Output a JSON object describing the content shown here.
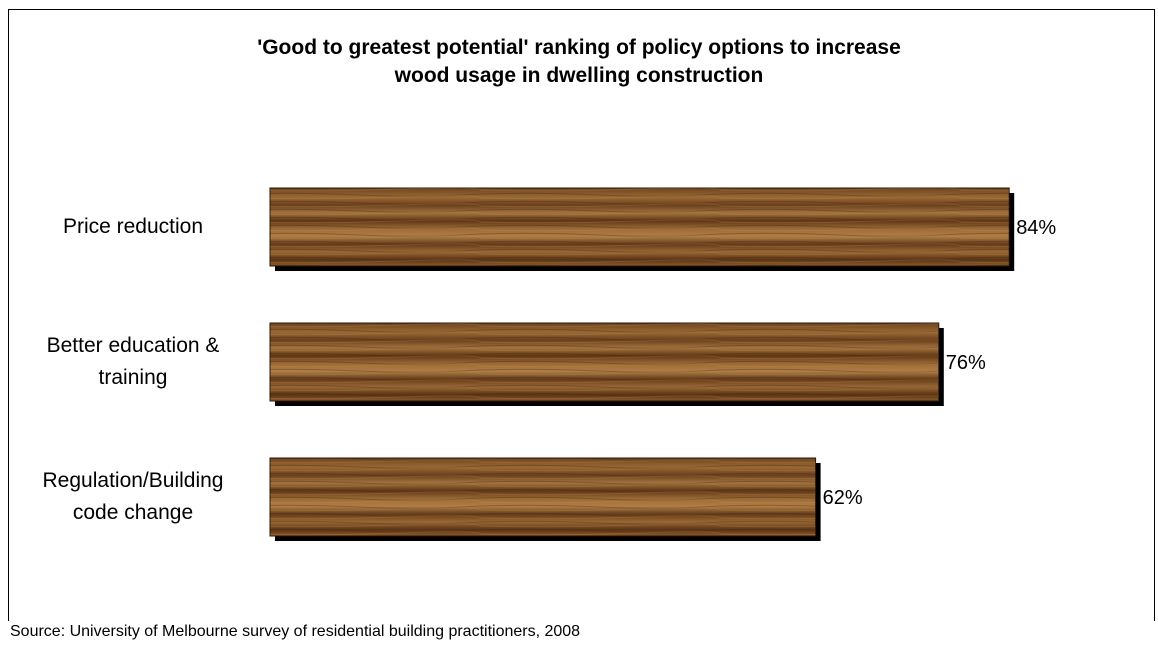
{
  "chart_data": {
    "type": "bar",
    "orientation": "horizontal",
    "title": "'Good to greatest potential' ranking of policy options to increase wood usage in dwelling construction",
    "title_lines": [
      "'Good to greatest potential' ranking of policy options to increase",
      "wood usage in dwelling construction"
    ],
    "categories": [
      "Price reduction",
      "Better education & training",
      "Regulation/Building code change"
    ],
    "category_lines": [
      [
        "Price reduction"
      ],
      [
        "Better education &",
        "training"
      ],
      [
        "Regulation/Building",
        "code change"
      ]
    ],
    "values": [
      84,
      76,
      62
    ],
    "value_labels": [
      "84%",
      "76%",
      "62%"
    ],
    "xlim": [
      0,
      100
    ],
    "grid": false,
    "legend": "none",
    "bar_color": "#8a5a2b"
  },
  "footer": {
    "source": "Source: University of Melbourne survey of residential building practitioners, 2008"
  }
}
